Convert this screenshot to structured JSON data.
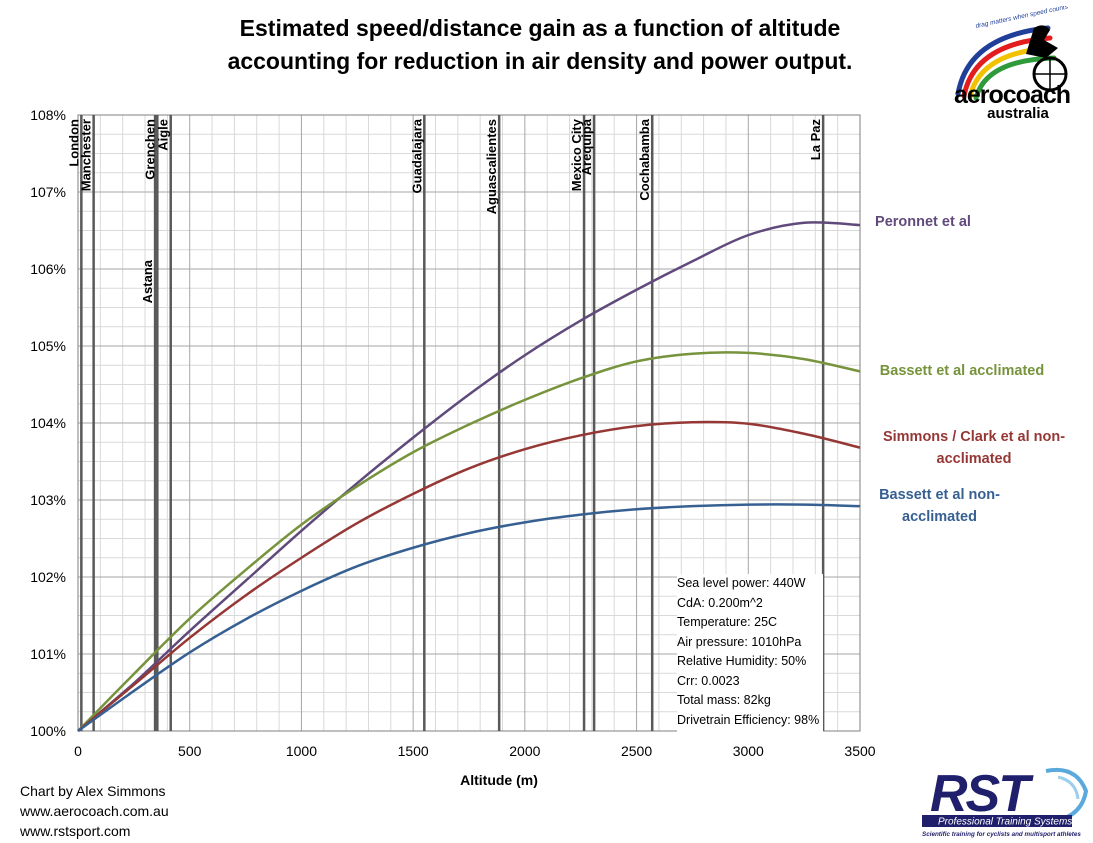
{
  "title_line1": "Estimated speed/distance gain as a function of altitude",
  "title_line2": "accounting for reduction in air density and power output.",
  "credits": [
    "Chart by Alex Simmons",
    "www.aerocoach.com.au",
    "www.rstsport.com"
  ],
  "parameters": [
    "Sea level power: 440W",
    "CdA: 0.200m^2",
    "Temperature: 25C",
    "Air pressure: 1010hPa",
    "Relative Humidity: 50%",
    "Crr: 0.0023",
    "Total mass: 82kg",
    "Drivetrain Efficiency: 98%"
  ],
  "logos": {
    "aerocoach": {
      "slogan": "drag matters when speed counts",
      "name": "aerocoach",
      "sub": "australia"
    },
    "rst": {
      "name": "RST",
      "tagline": "Professional Training Systems",
      "sub": "Scientific training for cyclists and multisport athletes"
    }
  },
  "colors": {
    "peronnet": "#604a7b",
    "bassett_accl": "#77933c",
    "simmons": "#953735",
    "bassett_non": "#376092",
    "grid": "#a6a6a6",
    "venue": "#595959"
  },
  "chart_data": {
    "type": "line",
    "xlabel": "Altitude  (m)",
    "ylabel": "",
    "xlim": [
      0,
      3500
    ],
    "ylim": [
      100,
      108
    ],
    "x_ticks": [
      0,
      500,
      1000,
      1500,
      2000,
      2500,
      3000,
      3500
    ],
    "y_ticks": [
      "100%",
      "101%",
      "102%",
      "103%",
      "104%",
      "105%",
      "106%",
      "107%",
      "108%"
    ],
    "grid": true,
    "x": [
      0,
      250,
      500,
      750,
      1000,
      1250,
      1500,
      1750,
      2000,
      2250,
      2500,
      2750,
      3000,
      3250,
      3500
    ],
    "series": [
      {
        "name": "Peronnet et al",
        "key": "peronnet",
        "label_lines": [
          "Peronnet et al"
        ],
        "values": [
          100.0,
          100.62,
          101.3,
          101.95,
          102.6,
          103.22,
          103.81,
          104.37,
          104.88,
          105.33,
          105.73,
          106.1,
          106.44,
          106.6,
          106.57
        ]
      },
      {
        "name": "Bassett et al acclimated",
        "key": "bassett_accl",
        "label_lines": [
          "Bassett et al acclimated"
        ],
        "values": [
          100.0,
          100.74,
          101.46,
          102.09,
          102.68,
          103.18,
          103.62,
          103.98,
          104.3,
          104.58,
          104.8,
          104.9,
          104.91,
          104.83,
          104.67
        ]
      },
      {
        "name": "Simmons / Clark et al non-acclimated",
        "key": "simmons",
        "label_lines": [
          "Simmons / Clark et al non-",
          "acclimated"
        ],
        "values": [
          100.0,
          100.6,
          101.21,
          101.76,
          102.25,
          102.7,
          103.08,
          103.41,
          103.66,
          103.84,
          103.96,
          104.01,
          103.99,
          103.86,
          103.68
        ]
      },
      {
        "name": "Bassett et al non-acclimated",
        "key": "bassett_non",
        "label_lines": [
          "Bassett et al non-",
          "acclimated"
        ],
        "values": [
          100.0,
          100.52,
          101.02,
          101.45,
          101.82,
          102.14,
          102.38,
          102.57,
          102.71,
          102.81,
          102.88,
          102.92,
          102.94,
          102.94,
          102.92
        ]
      }
    ],
    "venues": [
      {
        "name": "London",
        "altitude": 15
      },
      {
        "name": "Manchester",
        "altitude": 70
      },
      {
        "name": "Astana",
        "altitude": 345
      },
      {
        "name": "Grenchen",
        "altitude": 355
      },
      {
        "name": "Aigle",
        "altitude": 415
      },
      {
        "name": "Guadalajara",
        "altitude": 1550
      },
      {
        "name": "Aguascalientes",
        "altitude": 1885
      },
      {
        "name": "Mexico City",
        "altitude": 2265
      },
      {
        "name": "Arequipa",
        "altitude": 2310
      },
      {
        "name": "Cochabamba",
        "altitude": 2570
      },
      {
        "name": "La Paz",
        "altitude": 3335
      }
    ]
  }
}
